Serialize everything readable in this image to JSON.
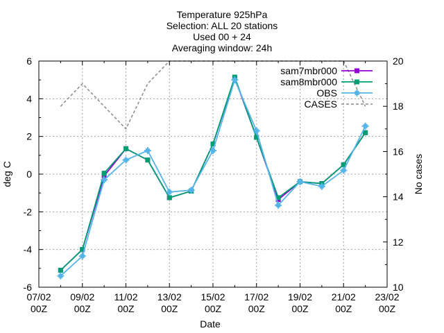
{
  "chart_data": {
    "type": "line",
    "title_lines": [
      "Temperature 925hPa",
      "Selection: ALL     20 stations",
      "Used 00 + 24",
      "Averaging window: 24h"
    ],
    "xlabel": "Date",
    "ylabel": "deg C",
    "y2label": "No cases",
    "x_tick_labels": [
      [
        "07/02",
        "00Z"
      ],
      [
        "09/02",
        "00Z"
      ],
      [
        "11/02",
        "00Z"
      ],
      [
        "13/02",
        "00Z"
      ],
      [
        "15/02",
        "00Z"
      ],
      [
        "17/02",
        "00Z"
      ],
      [
        "19/02",
        "00Z"
      ],
      [
        "21/02",
        "00Z"
      ],
      [
        "23/02",
        "00Z"
      ]
    ],
    "xlim_days": [
      7,
      23
    ],
    "ylim": [
      -6,
      6
    ],
    "y_ticks": [
      "-6",
      "-4",
      "-2",
      "0",
      "2",
      "4",
      "6"
    ],
    "y2lim": [
      10,
      20
    ],
    "y2_ticks": [
      "10",
      "12",
      "14",
      "16",
      "18",
      "20"
    ],
    "grid": true,
    "legend_position": "top-right",
    "x": [
      8,
      9,
      10,
      11,
      12,
      13,
      14,
      15,
      16,
      17,
      18,
      19,
      20,
      21,
      22
    ],
    "series": [
      {
        "name": "sam7mbr000",
        "color": "#9400d3",
        "marker": "square",
        "axis": "y",
        "values": [
          -5.1,
          -4.0,
          -0.1,
          1.35,
          0.75,
          -1.25,
          -0.9,
          1.6,
          5.1,
          1.95,
          -1.35,
          -0.4,
          -0.5,
          0.5,
          2.2
        ]
      },
      {
        "name": "sam8mbr000",
        "color": "#009e73",
        "marker": "square",
        "axis": "y",
        "values": [
          -5.1,
          -4.0,
          0.05,
          1.35,
          0.75,
          -1.25,
          -0.9,
          1.6,
          5.15,
          1.95,
          -1.25,
          -0.4,
          -0.5,
          0.5,
          2.2
        ]
      },
      {
        "name": "OBS",
        "color": "#56b4e9",
        "marker": "plus",
        "axis": "y",
        "values": [
          -5.4,
          -4.35,
          -0.3,
          0.75,
          1.25,
          -0.95,
          -0.85,
          1.25,
          5.0,
          2.3,
          -1.65,
          -0.4,
          -0.65,
          0.2,
          2.55
        ]
      },
      {
        "name": "CASES",
        "color": "#888888",
        "dashed": true,
        "axis": "y2",
        "values": [
          18,
          19,
          18,
          17,
          19,
          20,
          20,
          20,
          20,
          20,
          20,
          20,
          20,
          20,
          18
        ]
      }
    ]
  }
}
